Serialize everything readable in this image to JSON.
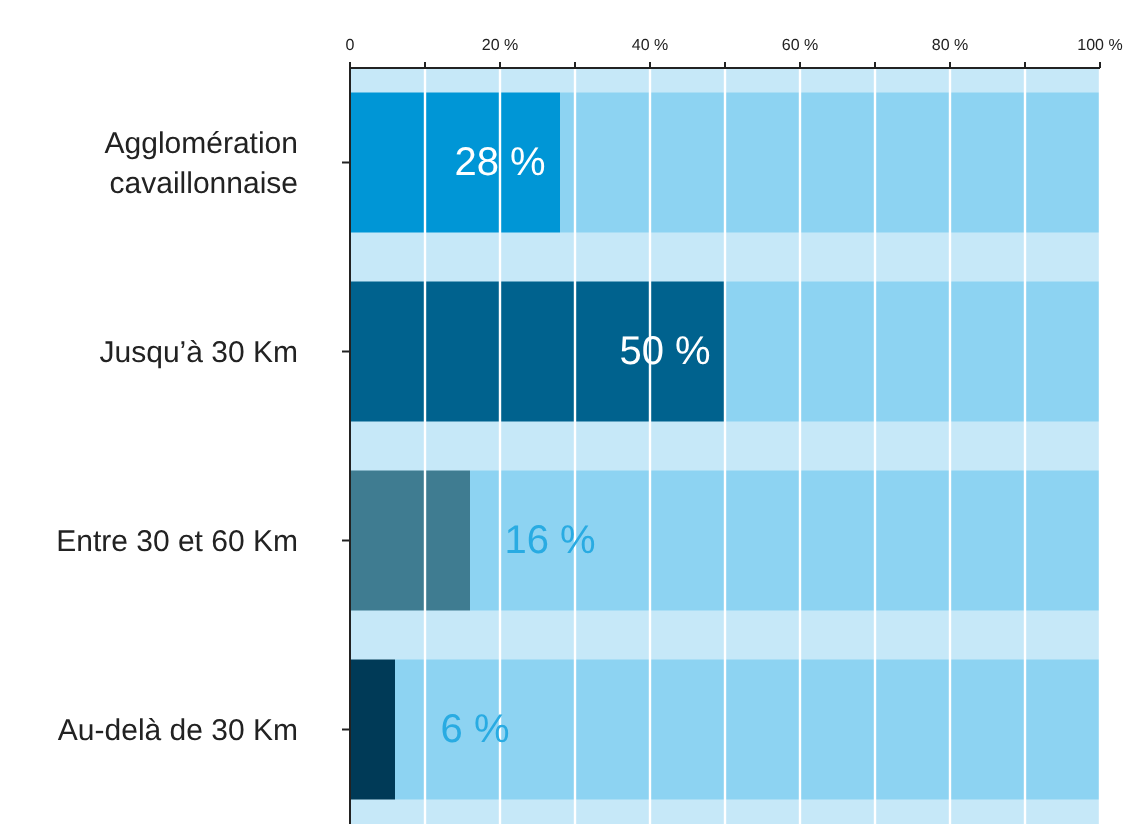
{
  "chart_data": {
    "type": "bar",
    "orientation": "horizontal",
    "stacked": true,
    "categories": [
      "Agglomération cavaillonnaise",
      "Jusqu’à 30 Km",
      "Entre 30 et 60 Km",
      "Au-delà de 30 Km"
    ],
    "series": [
      {
        "colors": [
          "#0096d6",
          "#00628e",
          "#3f7c91",
          "#003a57"
        ],
        "values": [
          28,
          50,
          16,
          6
        ],
        "value_labels": [
          "28 %",
          "50 %",
          "16 %",
          "6 %"
        ]
      },
      {
        "color": "#8dd3f2",
        "values": [
          72,
          50,
          84,
          94
        ]
      }
    ],
    "xlim": [
      0,
      100
    ],
    "xticks": [
      0,
      {
        "value": 10,
        "label": null
      },
      {
        "value": 20,
        "label": "20 %"
      },
      {
        "value": 30,
        "label": null
      },
      {
        "value": 40,
        "label": "40 %"
      },
      {
        "value": 50,
        "label": null
      },
      {
        "value": 60,
        "label": "60 %"
      },
      {
        "value": 70,
        "label": null
      },
      {
        "value": 80,
        "label": "80 %"
      },
      {
        "value": 90,
        "label": null
      },
      {
        "value": 100,
        "label": "100 %"
      }
    ],
    "bands": [
      {
        "axis": "x",
        "from": 0,
        "to": 100,
        "color": "#c6e8f8"
      }
    ],
    "grid": "x",
    "legend": false
  }
}
